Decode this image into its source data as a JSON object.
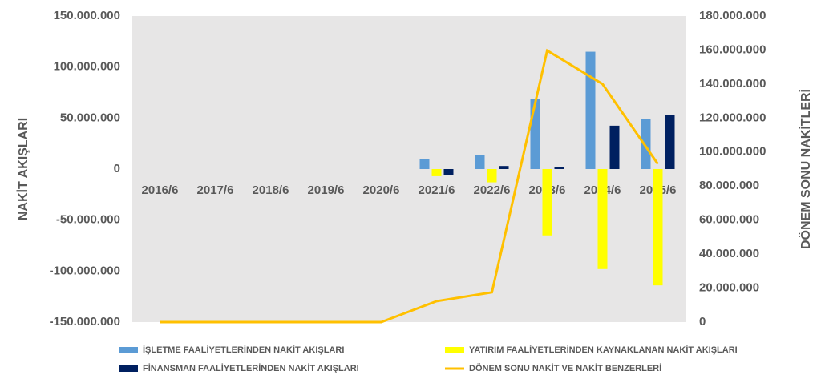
{
  "chart_data": {
    "type": "bar",
    "y_label": "NAKİT AKIŞLARI",
    "y2_label": "DÖNEM SONU NAKİTLERİ",
    "categories": [
      "2016/6",
      "2017/6",
      "2018/6",
      "2019/6",
      "2020/6",
      "2021/6",
      "2022/6",
      "2023/6",
      "2024/6",
      "2025/6"
    ],
    "series": [
      {
        "name": "İŞLETME FAALİYETLERİNDEN NAKİT AKIŞLARI",
        "color": "#5b9bd5",
        "values": [
          0,
          0,
          0,
          0,
          0,
          9500000,
          14000000,
          68500000,
          115000000,
          49000000
        ]
      },
      {
        "name": "YATIRIM FAALİYETLERİNDEN KAYNAKLANAN NAKİT AKIŞLARI",
        "color": "#ffff00",
        "values": [
          0,
          0,
          0,
          0,
          0,
          -7000000,
          -13000000,
          -65000000,
          -98000000,
          -114000000
        ]
      },
      {
        "name": "FİNANSMAN FAALİYETLERİNDEN NAKİT AKIŞLARI",
        "color": "#002060",
        "values": [
          0,
          0,
          0,
          0,
          0,
          -6000000,
          3000000,
          2000000,
          42500000,
          52700000
        ]
      },
      {
        "name": "DÖNEM SONU NAKİT VE NAKİT BENZERLERİ",
        "color": "#ffc000",
        "type": "line",
        "axis": "y2",
        "values": [
          0,
          0,
          0,
          0,
          0,
          12300000,
          17500000,
          159700000,
          140000000,
          93000000
        ]
      }
    ],
    "ylim": [
      -150000000,
      150000000
    ],
    "yticks": [
      {
        "value": -150000000,
        "label": "-150.000.000"
      },
      {
        "value": -100000000,
        "label": "-100.000.000"
      },
      {
        "value": -50000000,
        "label": "-50.000.000"
      },
      0,
      {
        "value": 50000000,
        "label": "50.000.000"
      },
      {
        "value": 100000000,
        "label": "100.000.000"
      },
      {
        "value": 150000000,
        "label": "150.000.000"
      }
    ],
    "y2lim": [
      0,
      180000000
    ],
    "y2ticks": [
      0,
      {
        "value": 20000000,
        "label": "20.000.000"
      },
      {
        "value": 40000000,
        "label": "40.000.000"
      },
      {
        "value": 60000000,
        "label": "60.000.000"
      },
      {
        "value": 80000000,
        "label": "80.000.000"
      },
      {
        "value": 100000000,
        "label": "100.000.000"
      },
      {
        "value": 120000000,
        "label": "120.000.000"
      },
      {
        "value": 140000000,
        "label": "140.000.000"
      },
      {
        "value": 160000000,
        "label": "160.000.000"
      },
      {
        "value": 180000000,
        "label": "180.000.000"
      }
    ],
    "plot_background": "#e7e6e6",
    "legend": "bottom"
  }
}
